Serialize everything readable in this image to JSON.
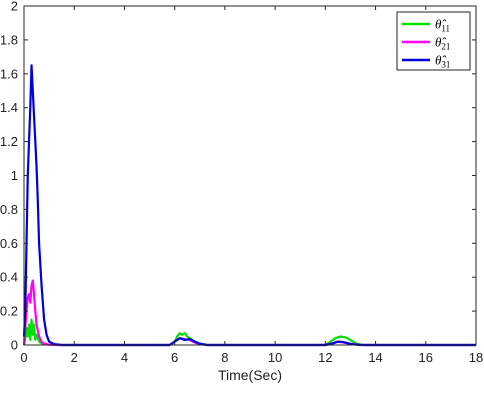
{
  "chart_data": {
    "type": "line",
    "title": "",
    "xlabel": "Time(Sec)",
    "ylabel": "",
    "xlim": [
      0,
      18
    ],
    "ylim": [
      0,
      2
    ],
    "xticks": [
      0,
      2,
      4,
      6,
      8,
      10,
      12,
      14,
      16,
      18
    ],
    "yticks": [
      0,
      0.2,
      0.4,
      0.6,
      0.8,
      1,
      1.2,
      1.4,
      1.6,
      1.8,
      2
    ],
    "xtick_labels": [
      "0",
      "2",
      "4",
      "6",
      "8",
      "10",
      "12",
      "14",
      "16",
      "18"
    ],
    "ytick_labels": [
      "0",
      "0.2",
      "0.4",
      "0.6",
      "0.8",
      "1",
      "1.2",
      "1.4",
      "1.6",
      "1.8",
      "2"
    ],
    "grid": false,
    "legend_position": "top-right",
    "series": [
      {
        "name": "θ̂11",
        "legend_base": "θ̂",
        "legend_sub": "11",
        "color": "#00e000",
        "x": [
          0,
          0.05,
          0.1,
          0.15,
          0.2,
          0.25,
          0.3,
          0.35,
          0.4,
          0.45,
          0.5,
          0.6,
          0.7,
          0.8,
          1.0,
          1.3,
          5.8,
          6.0,
          6.1,
          6.2,
          6.3,
          6.4,
          6.5,
          6.6,
          6.8,
          7.0,
          7.3,
          12.0,
          12.2,
          12.4,
          12.6,
          12.8,
          13.0,
          13.2,
          13.5,
          18
        ],
        "y": [
          0,
          0.04,
          0.1,
          0.05,
          0.12,
          0.03,
          0.15,
          0.06,
          0.12,
          0.03,
          0.06,
          0.02,
          0.01,
          0.005,
          0.002,
          0,
          0,
          0.02,
          0.05,
          0.07,
          0.06,
          0.07,
          0.05,
          0.04,
          0.02,
          0.005,
          0,
          0,
          0.02,
          0.04,
          0.05,
          0.045,
          0.03,
          0.01,
          0,
          0
        ]
      },
      {
        "name": "θ̂21",
        "legend_base": "θ̂",
        "legend_sub": "21",
        "color": "#ff00ff",
        "x": [
          0,
          0.05,
          0.1,
          0.15,
          0.2,
          0.25,
          0.3,
          0.35,
          0.4,
          0.45,
          0.5,
          0.6,
          0.7,
          0.8,
          1.0,
          1.3,
          5.8,
          6.0,
          6.2,
          6.4,
          6.6,
          6.8,
          7.0,
          7.3,
          12.0,
          12.3,
          12.5,
          12.7,
          12.9,
          13.2,
          13.5,
          18
        ],
        "y": [
          0,
          0.1,
          0.2,
          0.28,
          0.3,
          0.25,
          0.35,
          0.38,
          0.3,
          0.2,
          0.12,
          0.05,
          0.02,
          0.008,
          0.002,
          0,
          0,
          0.02,
          0.04,
          0.035,
          0.03,
          0.015,
          0.005,
          0,
          0,
          0.01,
          0.02,
          0.015,
          0.01,
          0.003,
          0,
          0
        ]
      },
      {
        "name": "θ̂31",
        "legend_base": "θ̂",
        "legend_sub": "31",
        "color": "#0000dd",
        "x": [
          0,
          0.05,
          0.1,
          0.15,
          0.2,
          0.25,
          0.3,
          0.35,
          0.4,
          0.45,
          0.5,
          0.55,
          0.6,
          0.7,
          0.8,
          0.9,
          1.0,
          1.2,
          1.5,
          5.8,
          6.0,
          6.2,
          6.4,
          6.6,
          6.8,
          7.0,
          7.3,
          12.0,
          12.3,
          12.5,
          12.7,
          12.9,
          13.1,
          13.4,
          18
        ],
        "y": [
          0.05,
          0.2,
          0.6,
          1.0,
          1.2,
          1.4,
          1.65,
          1.5,
          1.35,
          1.2,
          1.05,
          0.85,
          0.6,
          0.35,
          0.15,
          0.06,
          0.02,
          0.005,
          0,
          0,
          0.02,
          0.04,
          0.03,
          0.035,
          0.02,
          0.008,
          0,
          0,
          0.01,
          0.02,
          0.018,
          0.01,
          0.004,
          0,
          0
        ]
      }
    ]
  }
}
